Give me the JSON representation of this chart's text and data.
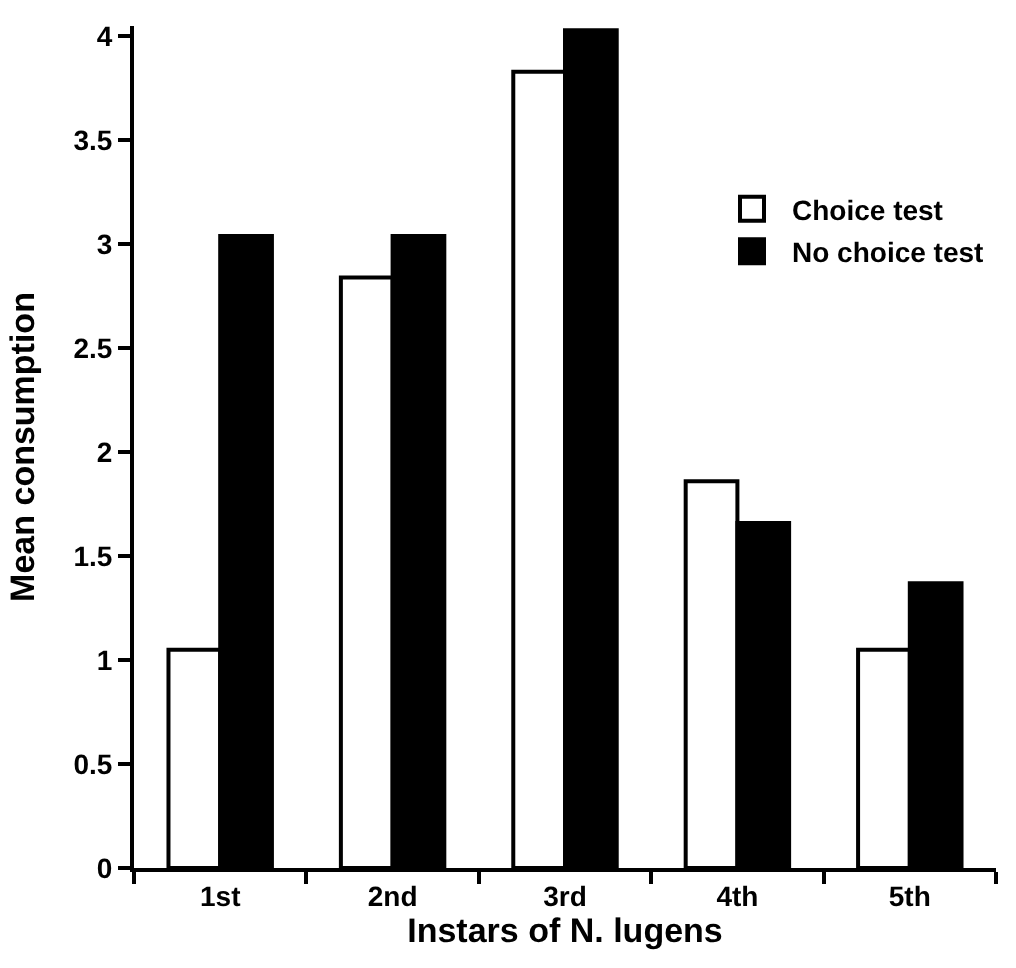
{
  "chart_data": {
    "type": "bar",
    "xlabel": "Instars of N. lugens",
    "ylabel": "Mean consumption",
    "categories": [
      "1st",
      "2nd",
      "3rd",
      "4th",
      "5th"
    ],
    "series": [
      {
        "name": "Choice test",
        "color": "#ffffff",
        "values": [
          1.05,
          2.84,
          3.83,
          1.86,
          1.05
        ]
      },
      {
        "name": "No choice test",
        "color": "#000000",
        "values": [
          3.04,
          3.04,
          4.03,
          1.66,
          1.37
        ]
      }
    ],
    "ylim": [
      0,
      4.05
    ],
    "yticks": [
      0,
      0.5,
      1,
      1.5,
      2,
      2.5,
      3,
      3.5,
      4
    ],
    "legend": "top right"
  }
}
